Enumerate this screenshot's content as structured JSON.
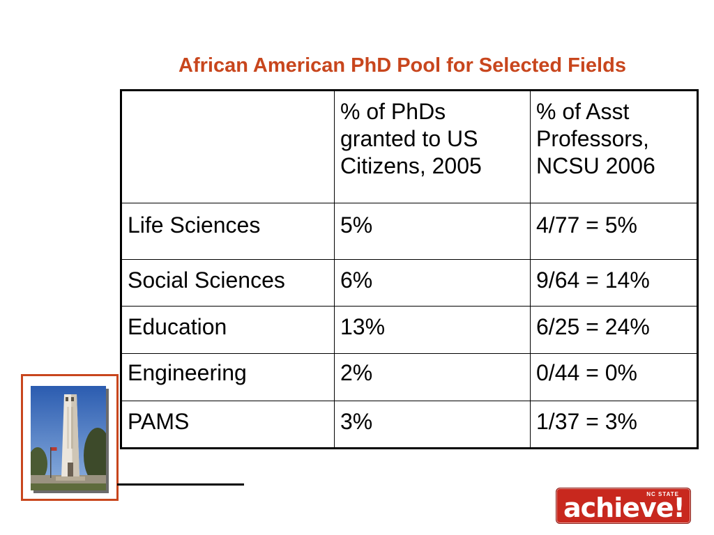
{
  "slide": {
    "title": "African American PhD Pool for Selected Fields"
  },
  "table": {
    "header": {
      "col1": "",
      "col2_lines": [
        "% of PhDs",
        "granted to US",
        "Citizens, 2005"
      ],
      "col3_lines": [
        "% of Asst",
        "Professors,",
        "NCSU 2006"
      ]
    },
    "rows": [
      {
        "field": "Life Sciences",
        "phd_pct": "5%",
        "asst_prof": "4/77 = 5%"
      },
      {
        "field": "Social Sciences",
        "phd_pct": "6%",
        "asst_prof": "9/64 = 14%"
      },
      {
        "field": "Education",
        "phd_pct": "13%",
        "asst_prof": "6/25 = 24%"
      },
      {
        "field": "Engineering",
        "phd_pct": "2%",
        "asst_prof": "0/44 = 0%"
      },
      {
        "field": "PAMS",
        "phd_pct": "3%",
        "asst_prof": "1/37 = 3%"
      }
    ]
  },
  "logo": {
    "small_text": "NC STATE",
    "main_text": "achieve!"
  },
  "colors": {
    "title": "#c8461d",
    "logo_bg": "#c8281e"
  },
  "icons": {
    "photo": "bell-tower-photo",
    "logo": "nc-state-achieve-logo"
  }
}
